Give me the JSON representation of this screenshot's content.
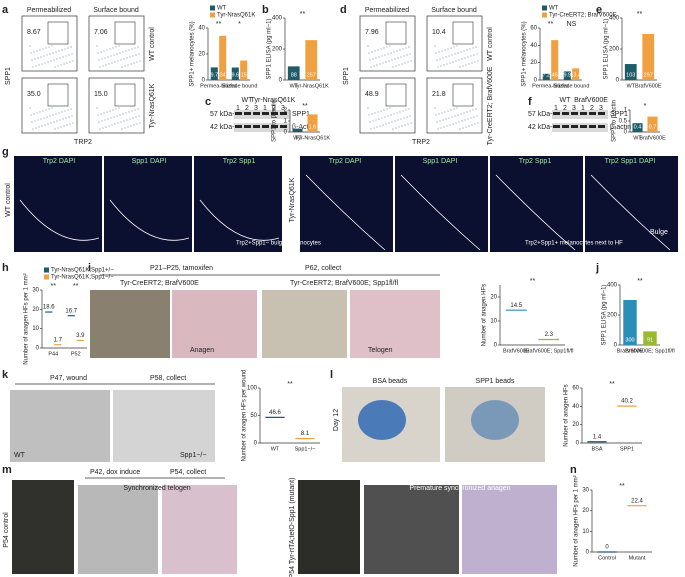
{
  "panels": {
    "a": {
      "label": "a",
      "col_titles": [
        "Permeabilized",
        "Surface bound"
      ],
      "gates": [
        "8.67",
        "7.06",
        "35.0",
        "15.0"
      ],
      "row_labels": [
        "WT control",
        "Tyr-NrasQ61K"
      ],
      "y_axis": "SPP1",
      "x_axis": "TRP2"
    },
    "b": {
      "label": "b"
    },
    "c": {
      "label": "c",
      "groups": [
        "WT",
        "Tyr-NrasQ61K"
      ],
      "lanes": [
        "1",
        "2",
        "3",
        "1",
        "2",
        "3"
      ],
      "markers": [
        "57 kDa-",
        "42 kDa-"
      ],
      "bands": [
        "SPP1",
        "β-Actin"
      ]
    },
    "d": {
      "label": "d",
      "col_titles": [
        "Permeabilized",
        "Surface bound"
      ],
      "gates": [
        "7.96",
        "10.4",
        "48.9",
        "21.8"
      ],
      "row_labels": [
        "WT control",
        "Tyr-CreERT2; BrafV600E"
      ],
      "y_axis": "SPP1",
      "x_axis": "TRP2"
    },
    "e": {
      "label": "e"
    },
    "f": {
      "label": "f",
      "groups": [
        "WT",
        "BrafV600E"
      ],
      "lanes": [
        "1",
        "2",
        "3",
        "1",
        "2",
        "3"
      ],
      "markers": [
        "57 kDa-",
        "42 kDa-"
      ],
      "bands": [
        "SPP1",
        "β-actin"
      ]
    },
    "g": {
      "label": "g",
      "row_labels": [
        "WT control",
        "Tyr-NrasQ61K"
      ],
      "titles": [
        "Trp2 DAPI",
        "Spp1 DAPI",
        "Trp2 Spp1",
        "Trp2 DAPI",
        "Spp1 DAPI",
        "Trp2 Spp1",
        "Trp2 Spp1 DAPI"
      ],
      "notes": [
        "Trp2+Spp1− bulge melanocytes",
        "Trp2+Spp1+ melanocytes next to HF",
        "Bulge"
      ]
    },
    "h": {
      "label": "h"
    },
    "i": {
      "label": "i",
      "timeline": [
        "P21–P25, tamoxifen",
        "P62, collect"
      ],
      "genotypes": [
        "Tyr-CreERT2; BrafV600E",
        "Tyr-CreERT2; BrafV600E; Spp1fl/fl"
      ],
      "stages": [
        "Anagen",
        "Telogen"
      ]
    },
    "j": {
      "label": "j"
    },
    "k": {
      "label": "k",
      "timeline": [
        "P47, wound",
        "P58, collect"
      ],
      "image_labels": [
        "WT",
        "Spp1−/−"
      ]
    },
    "l": {
      "label": "l",
      "titles": [
        "BSA beads",
        "SPP1 beads"
      ],
      "side": "Day 12"
    },
    "m": {
      "label": "m",
      "timeline": [
        "P42, dox induce",
        "P54, collect"
      ],
      "side": [
        "P54 control",
        "P54 Tyr-rtTA;tetO-Spp1 (mutant)"
      ],
      "titles": [
        "Synchronized telogen",
        "Premature synchronized anagen"
      ]
    },
    "n": {
      "label": "n"
    }
  },
  "chart_data": [
    {
      "type": "bar",
      "y_label": "SPP1+ melanocytes (%)",
      "categories": [
        "Permea-bilized",
        "Surface bound"
      ],
      "series": [
        {
          "name": "WT",
          "color": "#1d5c68",
          "values": [
            9.7,
            9.6
          ]
        },
        {
          "name": "Tyr-NrasQ61K",
          "color": "#f0a040",
          "values": [
            34,
            15
          ]
        }
      ],
      "ylim": [
        0,
        40
      ],
      "yticks": [
        0,
        20,
        40
      ],
      "annotations": [
        "**",
        "*"
      ]
    },
    {
      "type": "bar",
      "y_label": "SPP1 ELISA (pg ml−1)",
      "categories": [
        "WT",
        "Tyr-NrasQ61K"
      ],
      "values": [
        88,
        257
      ],
      "colors": [
        "#1d5c68",
        "#f0a040"
      ],
      "ylim": [
        0,
        400
      ],
      "yticks": [
        0,
        200,
        400
      ],
      "annotations": [
        "**"
      ]
    },
    {
      "type": "bar",
      "y_label": "SPP1 to β-actin",
      "categories": [
        "WT",
        "Tyr-NrasQ61K"
      ],
      "values": [
        0.3,
        1.6
      ],
      "colors": [
        "#1d5c68",
        "#f0a040"
      ],
      "ylim": [
        0,
        2
      ],
      "yticks": [
        0,
        1,
        2
      ],
      "annotations": [
        "**"
      ]
    },
    {
      "type": "bar",
      "y_label": "SPP1+ melanocytes (%)",
      "categories": [
        "Permea-bilized",
        "Surface bound"
      ],
      "series": [
        {
          "name": "WT",
          "color": "#1d5c68",
          "values": [
            7.2,
            9.9
          ]
        },
        {
          "name": "Tyr-CreERT2; BrafV600E",
          "color": "#f0a040",
          "values": [
            46,
            13.4
          ]
        }
      ],
      "ylim": [
        0,
        60
      ],
      "yticks": [
        0,
        20,
        40,
        60
      ],
      "annotations": [
        "**",
        "NS"
      ]
    },
    {
      "type": "bar",
      "y_label": "SPP1 ELISA (pg ml−1)",
      "categories": [
        "WT",
        "BrafV600E"
      ],
      "values": [
        103,
        297
      ],
      "colors": [
        "#1d5c68",
        "#f0a040"
      ],
      "ylim": [
        0,
        400
      ],
      "yticks": [
        0,
        200,
        400
      ],
      "annotations": [
        "**"
      ]
    },
    {
      "type": "bar",
      "y_label": "SPP1 to β-actin",
      "categories": [
        "WT",
        "BrafV600E"
      ],
      "values": [
        0.4,
        0.7
      ],
      "colors": [
        "#1d5c68",
        "#f0a040"
      ],
      "ylim": [
        0,
        1
      ],
      "yticks": [
        0,
        0.5,
        1
      ],
      "annotations": [
        "*"
      ]
    },
    {
      "type": "dot",
      "y_label": "Number of anagen HFs per 1 mm²",
      "categories": [
        "P44",
        "P52"
      ],
      "series": [
        {
          "name": "Tyr-NrasQ61K;Spp1+/−",
          "color": "#1d5c68",
          "values": [
            18.6,
            16.7
          ]
        },
        {
          "name": "Tyr-NrasQ61K;Spp1−/−",
          "color": "#f0a040",
          "values": [
            1.7,
            3.9
          ]
        }
      ],
      "ylim": [
        0,
        30
      ],
      "yticks": [
        0,
        10,
        20,
        30
      ],
      "annotations": [
        "**",
        "**"
      ]
    },
    {
      "type": "dot",
      "y_label": "Number of anagen HFs",
      "categories": [
        "BrafV600E",
        "BrafV600E; Spp1fl/fl"
      ],
      "values": [
        14.5,
        2.3
      ],
      "colors": [
        "#2a8fb8",
        "#9ab830"
      ],
      "ylim": [
        0,
        25
      ],
      "yticks": [
        0,
        10,
        20
      ],
      "annotations": [
        "**"
      ]
    },
    {
      "type": "bar",
      "y_label": "SPP1 ELISA (pg ml−1)",
      "categories": [
        "BrafV600E",
        "BrafV600E; Spp1fl/fl"
      ],
      "values": [
        300,
        91
      ],
      "colors": [
        "#2a8fb8",
        "#9ab830"
      ],
      "ylim": [
        0,
        400
      ],
      "yticks": [
        0,
        200,
        400
      ],
      "annotations": [
        "**"
      ]
    },
    {
      "type": "dot",
      "y_label": "Number of anagen HFs per wound",
      "categories": [
        "WT",
        "Spp1−/−"
      ],
      "values": [
        46.6,
        8.1
      ],
      "colors": [
        "#1d5c68",
        "#f0a040"
      ],
      "ylim": [
        0,
        100
      ],
      "yticks": [
        0,
        50,
        100
      ],
      "annotations": [
        "**"
      ]
    },
    {
      "type": "dot",
      "y_label": "Number of anagen HFs",
      "categories": [
        "BSA",
        "SPP1"
      ],
      "values": [
        1.4,
        40.2
      ],
      "colors": [
        "#1d5c68",
        "#f0a040"
      ],
      "ylim": [
        0,
        60
      ],
      "yticks": [
        0,
        20,
        40,
        60
      ],
      "annotations": [
        "**"
      ]
    },
    {
      "type": "dot",
      "y_label": "Number of anagen HFs per 1 mm²",
      "categories": [
        "Control",
        "Mutant"
      ],
      "values": [
        0,
        22.4
      ],
      "colors": [
        "#1d5c68",
        "#f0a040"
      ],
      "ylim": [
        0,
        30
      ],
      "yticks": [
        0,
        10,
        20,
        30
      ],
      "annotations": [
        "**"
      ]
    }
  ]
}
